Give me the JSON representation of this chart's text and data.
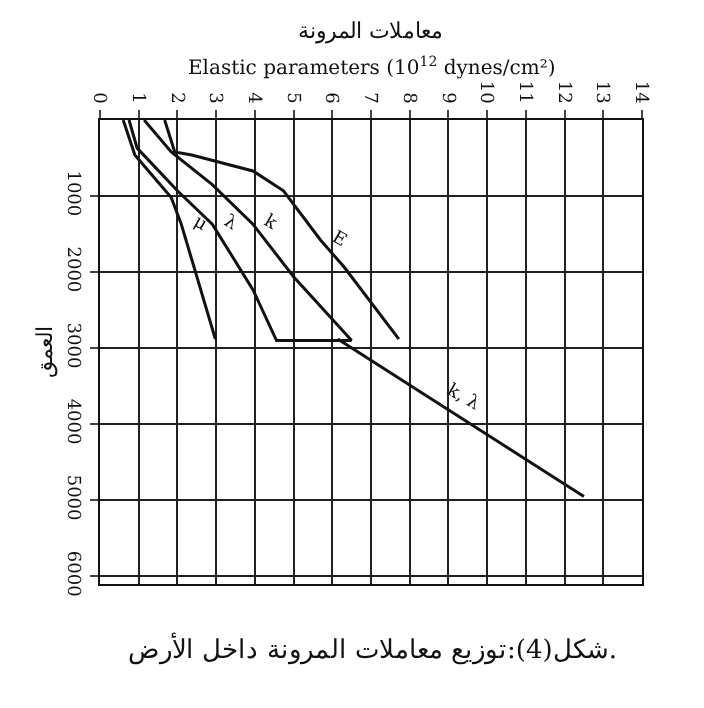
{
  "chart_data": {
    "type": "line",
    "title": "معاملات المرونة",
    "subtitle": "Elastic parameters (10$^{12}$ dynes/cm²)",
    "ylabel": "العمق",
    "annotations": [
      {
        "text": "μ",
        "x": 2.1,
        "y": 1370
      },
      {
        "text": "λ",
        "x": 2.9,
        "y": 1370
      },
      {
        "text": "k",
        "x": 3.95,
        "y": 1370
      },
      {
        "text": "E",
        "x": 5.7,
        "y": 1580
      },
      {
        "text": "k, λ",
        "x": 8.9,
        "y": 3650
      },
      "شكل(4):توزيع معاملات المرونة داخل الأرض."
    ],
    "series": [
      {
        "color": "#111111",
        "x": [
          0.6,
          0.9,
          1.84,
          2.1,
          2.98
        ],
        "values": [
          0,
          460,
          1020,
          1370,
          2880
        ]
      },
      {
        "color": "#111111",
        "x": [
          0.75,
          0.96,
          2.0,
          2.9,
          3.95,
          4.56,
          6.5
        ],
        "values": [
          0,
          370,
          930,
          1370,
          2230,
          2900,
          2900
        ]
      },
      {
        "color": "#111111",
        "x": [
          1.14,
          1.84,
          2.9,
          3.95,
          5.0,
          6.5
        ],
        "values": [
          0,
          420,
          850,
          1370,
          2060,
          2900
        ]
      },
      {
        "color": "#111111",
        "x": [
          1.67,
          1.93,
          2.37,
          3.95,
          4.74,
          5.7,
          6.3,
          7.72
        ],
        "values": [
          0,
          420,
          460,
          670,
          930,
          1580,
          1930,
          2880
        ]
      },
      {
        "color": "#111111",
        "x": [
          6.14,
          12.5
        ],
        "values": [
          2880,
          4950
        ]
      }
    ],
    "xlim": [
      0,
      14
    ],
    "xticks": [
      0,
      1,
      2,
      3,
      4,
      5,
      6,
      7,
      8,
      9,
      10,
      11,
      12,
      13,
      14
    ],
    "ylim": [
      6100,
      0
    ],
    "yticks": [
      1000,
      2000,
      3000,
      4000,
      5000,
      6000
    ],
    "grid": true,
    "marker": "none",
    "line_style": "solid"
  }
}
